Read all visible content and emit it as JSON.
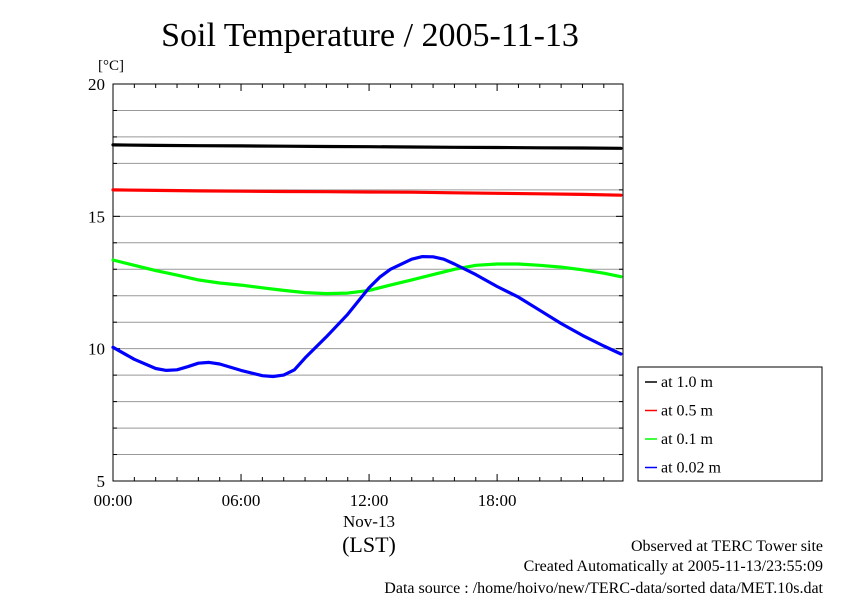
{
  "chart_data": {
    "type": "line",
    "title": "Soil Temperature / 2005-11-13",
    "ylabel": "[°C]",
    "xlabel": "(LST)",
    "date_label": "Nov-13",
    "ylim": [
      5,
      20
    ],
    "xlim": [
      0,
      23.9
    ],
    "yticks": [
      5,
      10,
      15,
      20
    ],
    "xticks": [
      {
        "value": 0,
        "label": "00:00"
      },
      {
        "value": 6,
        "label": "06:00"
      },
      {
        "value": 12,
        "label": "12:00"
      },
      {
        "value": 18,
        "label": "18:00"
      }
    ],
    "grid": true,
    "legend": "right",
    "series": [
      {
        "name": "at 1.0 m",
        "color": "#000000",
        "x": [
          0,
          2,
          4,
          6,
          8,
          10,
          12,
          14,
          16,
          18,
          20,
          22,
          23.8
        ],
        "y": [
          17.7,
          17.68,
          17.67,
          17.66,
          17.65,
          17.64,
          17.63,
          17.62,
          17.61,
          17.6,
          17.59,
          17.58,
          17.57
        ]
      },
      {
        "name": "at 0.5 m",
        "color": "#ff0000",
        "x": [
          0,
          2,
          4,
          6,
          8,
          10,
          12,
          14,
          16,
          18,
          20,
          22,
          23.8
        ],
        "y": [
          16.0,
          15.98,
          15.96,
          15.95,
          15.94,
          15.93,
          15.92,
          15.91,
          15.89,
          15.87,
          15.85,
          15.83,
          15.8
        ]
      },
      {
        "name": "at 0.1 m",
        "color": "#00ff00",
        "x": [
          0,
          1,
          2,
          3,
          4,
          5,
          6,
          7,
          8,
          9,
          10,
          11,
          12,
          13,
          14,
          15,
          16,
          17,
          18,
          19,
          20,
          21,
          22,
          23,
          23.8
        ],
        "y": [
          13.35,
          13.15,
          12.95,
          12.78,
          12.6,
          12.48,
          12.4,
          12.3,
          12.2,
          12.12,
          12.08,
          12.1,
          12.2,
          12.4,
          12.6,
          12.8,
          13.0,
          13.15,
          13.2,
          13.2,
          13.15,
          13.08,
          12.98,
          12.85,
          12.72
        ]
      },
      {
        "name": "at 0.02 m",
        "color": "#0000ff",
        "x": [
          0,
          1,
          2,
          2.5,
          3,
          3.5,
          4,
          4.5,
          5,
          6,
          7,
          7.5,
          8,
          8.5,
          9,
          10,
          11,
          12,
          12.5,
          13,
          14,
          14.5,
          15,
          15.5,
          16,
          17,
          18,
          19,
          20,
          21,
          22,
          23,
          23.8
        ],
        "y": [
          10.05,
          9.6,
          9.25,
          9.18,
          9.2,
          9.32,
          9.45,
          9.48,
          9.42,
          9.18,
          8.98,
          8.95,
          9.0,
          9.2,
          9.65,
          10.45,
          11.3,
          12.3,
          12.7,
          13.0,
          13.38,
          13.48,
          13.47,
          13.38,
          13.2,
          12.8,
          12.35,
          11.95,
          11.45,
          10.95,
          10.5,
          10.1,
          9.8
        ]
      }
    ]
  },
  "footer": {
    "line1": "Observed at TERC Tower site",
    "line2": "Created Automatically at 2005-11-13/23:55:09",
    "line3": "Data source : /home/hoivo/new/TERC-data/sorted  data/MET.10s.dat"
  }
}
